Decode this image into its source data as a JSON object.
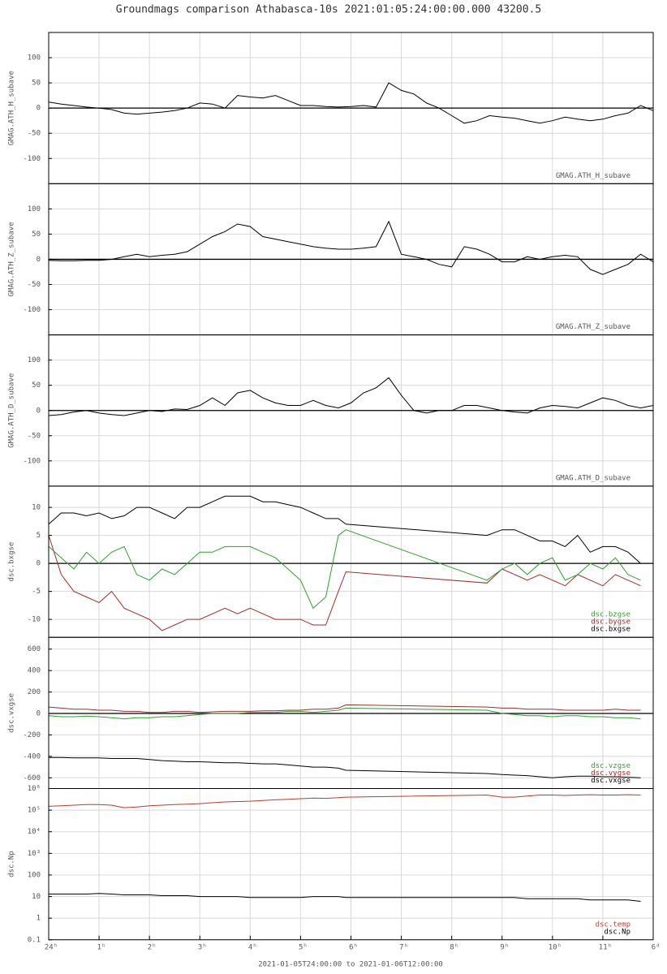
{
  "title": "Groundmags comparison Athabasca-10s 2021:01:05:24:00:00.000 43200.5",
  "xaxis": {
    "label": "2021-01-05T24:00:00 to 2021-01-06T12:00:00",
    "xlim": [
      0,
      12
    ],
    "xticks": [
      {
        "value": 0,
        "label": "24ʰ"
      },
      {
        "value": 1,
        "label": "1ʰ"
      },
      {
        "value": 2,
        "label": "2ʰ"
      },
      {
        "value": 3,
        "label": "3ʰ"
      },
      {
        "value": 4,
        "label": "4ʰ"
      },
      {
        "value": 5,
        "label": "5ʰ"
      },
      {
        "value": 6,
        "label": "6ʰ"
      },
      {
        "value": 7,
        "label": "7ʰ"
      },
      {
        "value": 8,
        "label": "8ʰ"
      },
      {
        "value": 9,
        "label": "9ʰ"
      },
      {
        "value": 10,
        "label": "10ʰ"
      },
      {
        "value": 11,
        "label": "11ʰ"
      },
      {
        "value": 12,
        "label": "6ᵈ"
      }
    ],
    "grid": true
  },
  "chart_data": [
    {
      "type": "line",
      "ylabel": "GMAG.ATH_H_subave",
      "ylim": [
        -150,
        150
      ],
      "yticks": [
        -100,
        -50,
        0,
        50,
        100
      ],
      "grid": true,
      "x": [
        0,
        0.25,
        0.5,
        0.75,
        1,
        1.25,
        1.5,
        1.75,
        2,
        2.25,
        2.5,
        2.75,
        3,
        3.25,
        3.5,
        3.75,
        4,
        4.25,
        4.5,
        4.75,
        5,
        5.25,
        5.5,
        5.75,
        6,
        6.25,
        6.5,
        6.75,
        7,
        7.25,
        7.5,
        7.75,
        8,
        8.25,
        8.5,
        8.75,
        9,
        9.25,
        9.5,
        9.75,
        10,
        10.25,
        10.5,
        10.75,
        11,
        11.25,
        11.5,
        11.75,
        12
      ],
      "series": [
        {
          "name": "GMAG.ATH_H_subave",
          "color": "#000000",
          "values": [
            12,
            8,
            5,
            2,
            0,
            -3,
            -10,
            -12,
            -10,
            -8,
            -5,
            0,
            10,
            8,
            0,
            25,
            22,
            20,
            25,
            15,
            5,
            5,
            3,
            2,
            3,
            5,
            2,
            50,
            35,
            28,
            10,
            0,
            -15,
            -30,
            -25,
            -15,
            -18,
            -20,
            -25,
            -30,
            -25,
            -18,
            -22,
            -25,
            -22,
            -15,
            -10,
            5,
            -5
          ]
        }
      ]
    },
    {
      "type": "line",
      "ylabel": "GMAG.ATH_Z_subave",
      "ylim": [
        -150,
        150
      ],
      "yticks": [
        -100,
        -50,
        0,
        50,
        100
      ],
      "grid": true,
      "x": [
        0,
        0.25,
        0.5,
        0.75,
        1,
        1.25,
        1.5,
        1.75,
        2,
        2.25,
        2.5,
        2.75,
        3,
        3.25,
        3.5,
        3.75,
        4,
        4.25,
        4.5,
        4.75,
        5,
        5.25,
        5.5,
        5.75,
        6,
        6.25,
        6.5,
        6.75,
        7,
        7.25,
        7.5,
        7.75,
        8,
        8.25,
        8.5,
        8.75,
        9,
        9.25,
        9.5,
        9.75,
        10,
        10.25,
        10.5,
        10.75,
        11,
        11.25,
        11.5,
        11.75,
        12
      ],
      "series": [
        {
          "name": "GMAG.ATH_Z_subave",
          "color": "#000000",
          "values": [
            -2,
            -3,
            -3,
            -2,
            -2,
            0,
            5,
            10,
            5,
            8,
            10,
            15,
            30,
            45,
            55,
            70,
            65,
            45,
            40,
            35,
            30,
            25,
            22,
            20,
            20,
            22,
            25,
            75,
            10,
            5,
            0,
            -10,
            -15,
            25,
            20,
            10,
            -5,
            -5,
            5,
            0,
            5,
            8,
            5,
            -20,
            -30,
            -20,
            -10,
            10,
            -5
          ]
        }
      ]
    },
    {
      "type": "line",
      "ylabel": "GMAG.ATH_D_subave",
      "ylim": [
        -150,
        150
      ],
      "yticks": [
        -100,
        -50,
        0,
        50,
        100
      ],
      "grid": true,
      "x": [
        0,
        0.25,
        0.5,
        0.75,
        1,
        1.25,
        1.5,
        1.75,
        2,
        2.25,
        2.5,
        2.75,
        3,
        3.25,
        3.5,
        3.75,
        4,
        4.25,
        4.5,
        4.75,
        5,
        5.25,
        5.5,
        5.75,
        6,
        6.25,
        6.5,
        6.75,
        7,
        7.25,
        7.5,
        7.75,
        8,
        8.25,
        8.5,
        8.75,
        9,
        9.25,
        9.5,
        9.75,
        10,
        10.25,
        10.5,
        10.75,
        11,
        11.25,
        11.5,
        11.75,
        12
      ],
      "series": [
        {
          "name": "GMAG.ATH_D_subave",
          "color": "#000000",
          "values": [
            -10,
            -8,
            -3,
            0,
            -5,
            -8,
            -10,
            -5,
            0,
            -2,
            3,
            2,
            10,
            25,
            10,
            35,
            40,
            25,
            15,
            10,
            10,
            20,
            10,
            5,
            15,
            35,
            45,
            65,
            30,
            0,
            -5,
            0,
            0,
            10,
            10,
            5,
            0,
            -3,
            -5,
            5,
            10,
            8,
            5,
            15,
            25,
            20,
            10,
            5,
            10
          ]
        }
      ]
    },
    {
      "type": "line",
      "ylabel": "dsc.bxgse",
      "ylim": [
        -13.2,
        13.8
      ],
      "yticks": [
        -10,
        -5,
        0,
        5,
        10
      ],
      "grid": true,
      "x": [
        0,
        0.25,
        0.5,
        0.75,
        1,
        1.25,
        1.5,
        1.75,
        2,
        2.25,
        2.5,
        2.75,
        3,
        3.25,
        3.5,
        3.75,
        4,
        4.25,
        4.5,
        4.75,
        5,
        5.25,
        5.5,
        5.75,
        5.9,
        8.7,
        9,
        9.25,
        9.5,
        9.75,
        10,
        10.25,
        10.5,
        10.75,
        11,
        11.25,
        11.5,
        11.75
      ],
      "series": [
        {
          "name": "dsc.bzgse",
          "color": "#2ca02c",
          "values": [
            3,
            1,
            -1,
            2,
            0,
            2,
            3,
            -2,
            -3,
            -1,
            -2,
            0,
            2,
            2,
            3,
            3,
            3,
            2,
            1,
            -1,
            -3,
            -8,
            -6,
            5,
            6,
            -3,
            -1,
            0,
            -2,
            0,
            1,
            -3,
            -2,
            0,
            -1,
            1,
            -2,
            -3
          ]
        },
        {
          "name": "dsc.bygse",
          "color": "#a52a2a",
          "values": [
            5,
            -2,
            -5,
            -6,
            -7,
            -5,
            -8,
            -9,
            -10,
            -12,
            -11,
            -10,
            -10,
            -9,
            -8,
            -9,
            -8,
            -9,
            -10,
            -10,
            -10,
            -11,
            -11,
            -5,
            -1.5,
            -3.5,
            -1,
            -2,
            -3,
            -2,
            -3,
            -4,
            -2,
            -3,
            -4,
            -2,
            -3,
            -4
          ]
        },
        {
          "name": "dsc.bxgse",
          "color": "#000000",
          "values": [
            7,
            9,
            9,
            8.5,
            9,
            8,
            8.5,
            10,
            10,
            9,
            8,
            10,
            10,
            11,
            12,
            12,
            12,
            11,
            11,
            10.5,
            10,
            9,
            8,
            8,
            7,
            5,
            6,
            6,
            5,
            4,
            4,
            3,
            5,
            2,
            3,
            3,
            2,
            0
          ]
        }
      ]
    },
    {
      "type": "line",
      "ylabel": "dsc.vxgse",
      "ylim": [
        -700,
        710
      ],
      "yticks": [
        -600,
        -400,
        -200,
        0,
        200,
        400,
        600
      ],
      "grid": true,
      "x": [
        0,
        0.25,
        0.5,
        0.75,
        1,
        1.25,
        1.5,
        1.75,
        2,
        2.25,
        2.5,
        2.75,
        3,
        3.25,
        3.5,
        3.75,
        4,
        4.25,
        4.5,
        4.75,
        5,
        5.25,
        5.5,
        5.75,
        5.9,
        8.7,
        9,
        9.25,
        9.5,
        9.75,
        10,
        10.25,
        10.5,
        10.75,
        11,
        11.25,
        11.5,
        11.75
      ],
      "series": [
        {
          "name": "dsc.vzgse",
          "color": "#2ca02c",
          "values": [
            -20,
            -30,
            -30,
            -25,
            -30,
            -40,
            -50,
            -40,
            -40,
            -30,
            -30,
            -20,
            -10,
            0,
            0,
            0,
            10,
            10,
            10,
            20,
            20,
            10,
            20,
            30,
            50,
            30,
            0,
            -10,
            -20,
            -20,
            -30,
            -20,
            -20,
            -30,
            -30,
            -40,
            -40,
            -50
          ]
        },
        {
          "name": "dsc.vygse",
          "color": "#a52a2a",
          "values": [
            60,
            50,
            40,
            40,
            30,
            30,
            20,
            20,
            10,
            10,
            20,
            20,
            10,
            15,
            20,
            20,
            20,
            25,
            25,
            30,
            30,
            40,
            40,
            50,
            80,
            60,
            50,
            50,
            40,
            40,
            40,
            30,
            30,
            30,
            30,
            40,
            30,
            30
          ]
        },
        {
          "name": "dsc.vxgse",
          "color": "#000000",
          "values": [
            -410,
            -410,
            -415,
            -415,
            -415,
            -420,
            -420,
            -420,
            -430,
            -440,
            -445,
            -450,
            -450,
            -455,
            -460,
            -460,
            -465,
            -470,
            -470,
            -480,
            -490,
            -500,
            -500,
            -510,
            -530,
            -560,
            -570,
            -575,
            -580,
            -590,
            -600,
            -590,
            -585,
            -585,
            -590,
            -590,
            -595,
            -600
          ]
        }
      ]
    },
    {
      "type": "line",
      "ylabel": "dsc.Np",
      "log": true,
      "ylim": [
        0.1,
        1000000
      ],
      "yticks": [
        0.1,
        1,
        10,
        100,
        {
          "value": 1000,
          "label": "10³"
        },
        {
          "value": 10000,
          "label": "10⁴"
        },
        {
          "value": 100000,
          "label": "10⁵"
        },
        {
          "value": 1000000,
          "label": "10⁶"
        }
      ],
      "grid": true,
      "x": [
        0,
        0.25,
        0.5,
        0.75,
        1,
        1.25,
        1.5,
        1.75,
        2,
        2.25,
        2.5,
        2.75,
        3,
        3.25,
        3.5,
        3.75,
        4,
        4.25,
        4.5,
        4.75,
        5,
        5.25,
        5.5,
        5.75,
        5.9,
        8.7,
        9,
        9.25,
        9.5,
        9.75,
        10,
        10.25,
        10.5,
        10.75,
        11,
        11.25,
        11.5,
        11.75
      ],
      "series": [
        {
          "name": "dsc.temp",
          "color": "#c0392b",
          "values": [
            150000,
            160000,
            170000,
            180000,
            180000,
            170000,
            130000,
            140000,
            160000,
            170000,
            180000,
            190000,
            200000,
            220000,
            240000,
            250000,
            260000,
            280000,
            300000,
            320000,
            340000,
            360000,
            350000,
            380000,
            400000,
            500000,
            400000,
            400000,
            450000,
            500000,
            500000,
            480000,
            500000,
            520000,
            500000,
            500000,
            520000,
            500000
          ]
        },
        {
          "name": "dsc.Np",
          "color": "#000000",
          "values": [
            13,
            13,
            13,
            13,
            14,
            13,
            12,
            12,
            12,
            11,
            11,
            11,
            10,
            10,
            10,
            10,
            9,
            9,
            9,
            9,
            9,
            10,
            10,
            10,
            9,
            9,
            9,
            9,
            8,
            8,
            8,
            8,
            8,
            7,
            7,
            7,
            7,
            6
          ]
        }
      ]
    }
  ]
}
